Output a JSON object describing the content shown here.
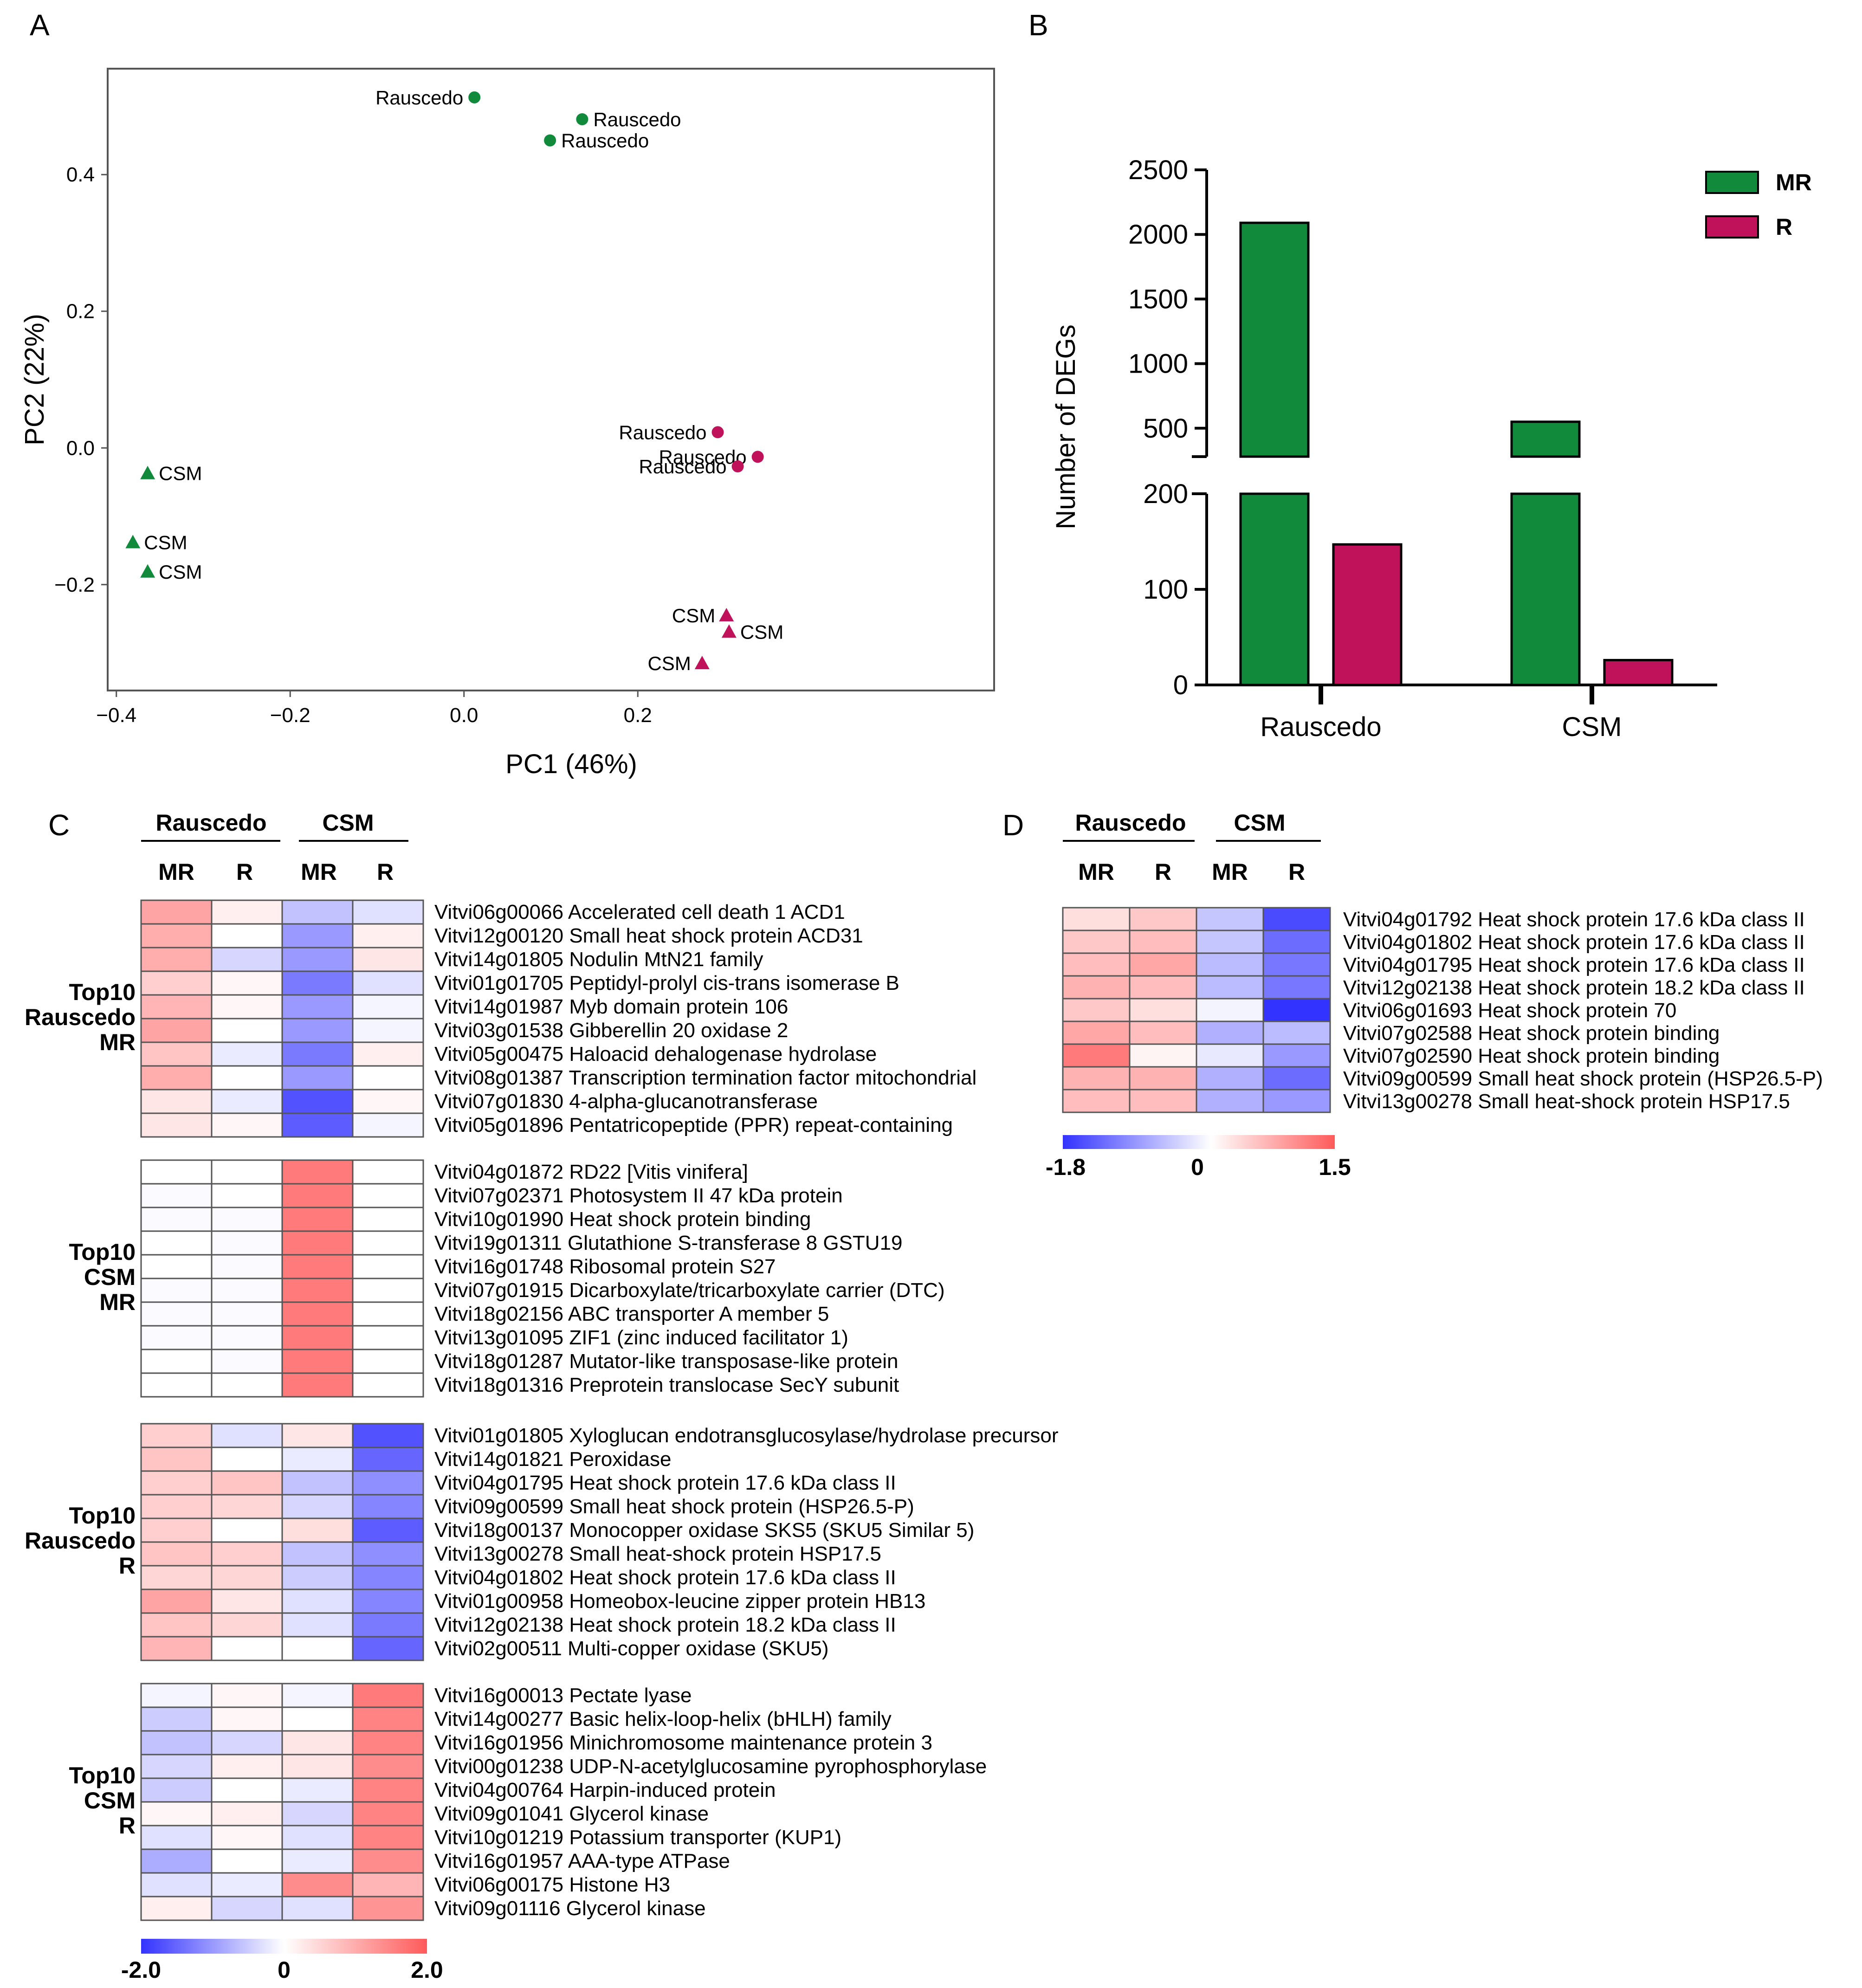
{
  "figure": {
    "panels": [
      "A",
      "B",
      "C",
      "D"
    ]
  },
  "chart_data": [
    {
      "panel": "A",
      "type": "scatter",
      "xlabel": "PC1 (46%)",
      "ylabel": "PC2 (22%)",
      "xlim": [
        -0.41,
        0.61
      ],
      "ylim": [
        -0.355,
        0.555
      ],
      "xticks": [
        -0.4,
        -0.2,
        0.0,
        0.2
      ],
      "xtick_labels": [
        "−0.4",
        "−0.2",
        "0.0",
        "0.2"
      ],
      "yticks": [
        0.4,
        0.2,
        0.0,
        -0.2
      ],
      "ytick_labels": [
        "0.4",
        "0.2",
        "0.0",
        "−0.2"
      ],
      "points": [
        {
          "label": "Rauscedo",
          "x": 0.012,
          "y": 0.513,
          "color": "#128a3c",
          "marker": "circle",
          "label_side": "left"
        },
        {
          "label": "Rauscedo",
          "x": 0.136,
          "y": 0.481,
          "color": "#128a3c",
          "marker": "circle",
          "label_side": "right"
        },
        {
          "label": "Rauscedo",
          "x": 0.099,
          "y": 0.45,
          "color": "#128a3c",
          "marker": "circle",
          "label_side": "right"
        },
        {
          "label": "CSM",
          "x": -0.364,
          "y": -0.037,
          "color": "#128a3c",
          "marker": "triangle",
          "label_side": "right"
        },
        {
          "label": "CSM",
          "x": -0.381,
          "y": -0.138,
          "color": "#128a3c",
          "marker": "triangle",
          "label_side": "right"
        },
        {
          "label": "CSM",
          "x": -0.364,
          "y": -0.181,
          "color": "#128a3c",
          "marker": "triangle",
          "label_side": "right"
        },
        {
          "label": "Rauscedo",
          "x": 0.292,
          "y": 0.023,
          "color": "#c0125a",
          "marker": "circle",
          "label_side": "left"
        },
        {
          "label": "Rauscedo",
          "x": 0.338,
          "y": -0.013,
          "color": "#c0125a",
          "marker": "circle",
          "label_side": "left"
        },
        {
          "label": "Rauscedo",
          "x": 0.315,
          "y": -0.027,
          "color": "#c0125a",
          "marker": "circle",
          "label_side": "left"
        },
        {
          "label": "CSM",
          "x": 0.302,
          "y": -0.245,
          "color": "#c0125a",
          "marker": "triangle",
          "label_side": "left"
        },
        {
          "label": "CSM",
          "x": 0.305,
          "y": -0.269,
          "color": "#c0125a",
          "marker": "triangle",
          "label_side": "right"
        },
        {
          "label": "CSM",
          "x": 0.274,
          "y": -0.315,
          "color": "#c0125a",
          "marker": "triangle",
          "label_side": "left"
        }
      ]
    },
    {
      "panel": "B",
      "type": "bar",
      "ylabel": "Number of DEGs",
      "categories": [
        "Rauscedo",
        "CSM"
      ],
      "series": [
        {
          "name": "MR",
          "color": "#128a3c",
          "values": [
            2090,
            550
          ]
        },
        {
          "name": "R",
          "color": "#c0125a",
          "values": [
            147,
            26
          ]
        }
      ],
      "y_axis_break": {
        "lower": [
          0,
          200
        ],
        "upper": [
          280,
          2500
        ]
      },
      "yticks_lower": [
        0,
        100,
        200
      ],
      "yticks_upper": [
        500,
        1000,
        1500,
        2000,
        2500
      ],
      "legend_position": "top-right"
    },
    {
      "panel": "C",
      "type": "heatmap",
      "groups": [
        "Rauscedo",
        "CSM"
      ],
      "columns": [
        "MR",
        "R",
        "MR",
        "R"
      ],
      "color_scale": {
        "min": -2.0,
        "mid": 0,
        "max": 2.0,
        "low_color": "#3333ff",
        "mid_color": "#ffffff",
        "high_color": "#ff5a5a"
      },
      "scale_labels": [
        "-2.0",
        "0",
        "2.0"
      ],
      "blocks": [
        {
          "label": [
            "Top10",
            "Rauscedo",
            "MR"
          ],
          "rows": [
            {
              "gene": "Vitvi06g00066 Accelerated cell death 1 ACD1",
              "values": [
                1.1,
                0.2,
                -0.6,
                -0.3
              ]
            },
            {
              "gene": "Vitvi12g00120 Small heat shock protein ACD31",
              "values": [
                1.0,
                0.0,
                -1.0,
                0.2
              ]
            },
            {
              "gene": "Vitvi14g01805 Nodulin MtN21 family",
              "values": [
                1.0,
                -0.4,
                -1.0,
                0.3
              ]
            },
            {
              "gene": "Vitvi01g01705 Peptidyl-prolyl cis-trans isomerase B",
              "values": [
                0.6,
                0.1,
                -1.3,
                -0.3
              ]
            },
            {
              "gene": "Vitvi14g01987 Myb domain protein 106",
              "values": [
                0.9,
                0.1,
                -1.0,
                -0.1
              ]
            },
            {
              "gene": "Vitvi03g01538 Gibberellin 20 oxidase 2",
              "values": [
                1.1,
                0.0,
                -1.0,
                -0.1
              ]
            },
            {
              "gene": "Vitvi05g00475 Haloacid dehalogenase hydrolase",
              "values": [
                0.7,
                -0.2,
                -1.3,
                0.2
              ]
            },
            {
              "gene": "Vitvi08g01387 Transcription termination factor mitochondrial",
              "values": [
                1.0,
                0.0,
                -1.0,
                0.0
              ]
            },
            {
              "gene": "Vitvi07g01830 4-alpha-glucanotransferase",
              "values": [
                0.3,
                -0.2,
                -1.7,
                0.1
              ]
            },
            {
              "gene": "Vitvi05g01896 Pentatricopeptide (PPR) repeat-containing",
              "values": [
                0.3,
                0.1,
                -1.6,
                -0.1
              ]
            }
          ]
        },
        {
          "label": [
            "Top10",
            "CSM",
            "MR"
          ],
          "rows": [
            {
              "gene": "Vitvi04g01872 RD22 [Vitis vinifera]",
              "values": [
                0.0,
                0.0,
                1.6,
                0.0
              ]
            },
            {
              "gene": "Vitvi07g02371 Photosystem II 47 kDa protein",
              "values": [
                -0.05,
                0.0,
                1.6,
                0.0
              ]
            },
            {
              "gene": "Vitvi10g01990 Heat shock protein binding",
              "values": [
                -0.05,
                -0.05,
                1.6,
                0.0
              ]
            },
            {
              "gene": "Vitvi19g01311 Glutathione S-transferase 8 GSTU19",
              "values": [
                0.0,
                -0.05,
                1.6,
                0.0
              ]
            },
            {
              "gene": "Vitvi16g01748 Ribosomal protein S27",
              "values": [
                0.0,
                -0.05,
                1.6,
                0.0
              ]
            },
            {
              "gene": "Vitvi07g01915 Dicarboxylate/tricarboxylate carrier (DTC)",
              "values": [
                -0.05,
                -0.05,
                1.6,
                0.0
              ]
            },
            {
              "gene": "Vitvi18g02156 ABC transporter A member 5",
              "values": [
                -0.05,
                -0.05,
                1.6,
                0.0
              ]
            },
            {
              "gene": "Vitvi13g01095 ZIF1 (zinc induced facilitator 1)",
              "values": [
                -0.05,
                -0.05,
                1.6,
                0.0
              ]
            },
            {
              "gene": "Vitvi18g01287 Mutator-like transposase-like protein",
              "values": [
                0.0,
                -0.05,
                1.6,
                0.0
              ]
            },
            {
              "gene": "Vitvi18g01316 Preprotein translocase SecY subunit",
              "values": [
                0.0,
                0.0,
                1.6,
                0.0
              ]
            }
          ]
        },
        {
          "label": [
            "Top10",
            "Rauscedo",
            "R"
          ],
          "rows": [
            {
              "gene": "Vitvi01g01805 Xyloglucan endotransglucosylase/hydrolase precursor",
              "values": [
                0.6,
                -0.3,
                0.3,
                -1.7
              ]
            },
            {
              "gene": "Vitvi14g01821 Peroxidase",
              "values": [
                0.7,
                0.0,
                -0.2,
                -1.5
              ]
            },
            {
              "gene": "Vitvi04g01795 Heat shock protein 17.6 kDa class II",
              "values": [
                0.6,
                0.7,
                -0.6,
                -1.1
              ]
            },
            {
              "gene": "Vitvi09g00599 Small heat shock protein (HSP26.5-P)",
              "values": [
                0.6,
                0.5,
                -0.4,
                -1.2
              ]
            },
            {
              "gene": "Vitvi18g00137 Monocopper oxidase SKS5 (SKU5 Similar 5)",
              "values": [
                0.6,
                0.0,
                0.4,
                -1.6
              ]
            },
            {
              "gene": "Vitvi13g00278 Small heat-shock protein HSP17.5",
              "values": [
                0.7,
                0.6,
                -0.6,
                -1.1
              ]
            },
            {
              "gene": "Vitvi04g01802 Heat shock protein 17.6 kDa class II",
              "values": [
                0.5,
                0.5,
                -0.5,
                -1.2
              ]
            },
            {
              "gene": "Vitvi01g00958 Homeobox-leucine zipper protein HB13",
              "values": [
                1.1,
                0.3,
                -0.3,
                -1.2
              ]
            },
            {
              "gene": "Vitvi12g02138 Heat shock protein 18.2 kDa class II",
              "values": [
                0.7,
                0.5,
                -0.3,
                -1.3
              ]
            },
            {
              "gene": "Vitvi02g00511 Multi-copper oxidase (SKU5)",
              "values": [
                0.9,
                0.0,
                0.0,
                -1.5
              ]
            }
          ]
        },
        {
          "label": [
            "Top10",
            "CSM",
            "R"
          ],
          "rows": [
            {
              "gene": "Vitvi16g00013 Pectate lyase",
              "values": [
                -0.1,
                0.1,
                -0.1,
                1.6
              ]
            },
            {
              "gene": "Vitvi14g00277 Basic helix-loop-helix (bHLH) family",
              "values": [
                -0.5,
                0.1,
                0.0,
                1.5
              ]
            },
            {
              "gene": "Vitvi16g01956 Minichromosome maintenance protein 3",
              "values": [
                -0.6,
                -0.4,
                0.3,
                1.5
              ]
            },
            {
              "gene": "Vitvi00g01238 UDP-N-acetylglucosamine pyrophosphorylase",
              "values": [
                -0.4,
                0.2,
                0.3,
                1.4
              ]
            },
            {
              "gene": "Vitvi04g00764 Harpin-induced protein",
              "values": [
                -0.5,
                0.0,
                -0.2,
                1.5
              ]
            },
            {
              "gene": "Vitvi09g01041 Glycerol kinase",
              "values": [
                0.1,
                0.2,
                -0.4,
                1.5
              ]
            },
            {
              "gene": "Vitvi10g01219 Potassium transporter (KUP1)",
              "values": [
                -0.3,
                0.1,
                -0.3,
                1.5
              ]
            },
            {
              "gene": "Vitvi16g01957 AAA-type ATPase",
              "values": [
                -0.8,
                0.0,
                -0.2,
                1.4
              ]
            },
            {
              "gene": "Vitvi06g00175 Histone H3",
              "values": [
                -0.3,
                -0.2,
                1.4,
                0.9
              ]
            },
            {
              "gene": "Vitvi09g01116 Glycerol kinase",
              "values": [
                0.2,
                -0.4,
                -0.3,
                1.3
              ]
            }
          ]
        }
      ]
    },
    {
      "panel": "D",
      "type": "heatmap",
      "groups": [
        "Rauscedo",
        "CSM"
      ],
      "columns": [
        "MR",
        "R",
        "MR",
        "R"
      ],
      "color_scale": {
        "min": -1.8,
        "mid": 0,
        "max": 1.5,
        "low_color": "#3333ff",
        "mid_color": "#ffffff",
        "high_color": "#ff5a5a"
      },
      "scale_labels": [
        "-1.8",
        "0",
        "1.5"
      ],
      "rows": [
        {
          "gene": "Vitvi04g01792 Heat shock protein 17.6 kDa class II",
          "values": [
            0.3,
            0.5,
            -0.5,
            -1.6
          ]
        },
        {
          "gene": "Vitvi04g01802 Heat shock protein 17.6 kDa class II",
          "values": [
            0.5,
            0.6,
            -0.5,
            -1.3
          ]
        },
        {
          "gene": "Vitvi04g01795 Heat shock protein 17.6 kDa class II",
          "values": [
            0.6,
            0.8,
            -0.6,
            -1.2
          ]
        },
        {
          "gene": "Vitvi12g02138 Heat shock protein 18.2 kDa class II",
          "values": [
            0.7,
            0.6,
            -0.6,
            -1.2
          ]
        },
        {
          "gene": "Vitvi06g01693 Heat shock protein 70",
          "values": [
            0.5,
            0.3,
            -0.1,
            -1.8
          ]
        },
        {
          "gene": "Vitvi07g02588 Heat shock protein binding",
          "values": [
            0.8,
            0.6,
            -0.7,
            -0.6
          ]
        },
        {
          "gene": "Vitvi07g02590 Heat shock protein binding",
          "values": [
            1.2,
            0.1,
            -0.2,
            -0.9
          ]
        },
        {
          "gene": "Vitvi09g00599 Small heat shock protein (HSP26.5-P)",
          "values": [
            0.7,
            0.7,
            -0.7,
            -1.3
          ]
        },
        {
          "gene": "Vitvi13g00278 Small heat-shock protein HSP17.5",
          "values": [
            0.6,
            0.6,
            -0.7,
            -0.9
          ]
        }
      ]
    }
  ]
}
